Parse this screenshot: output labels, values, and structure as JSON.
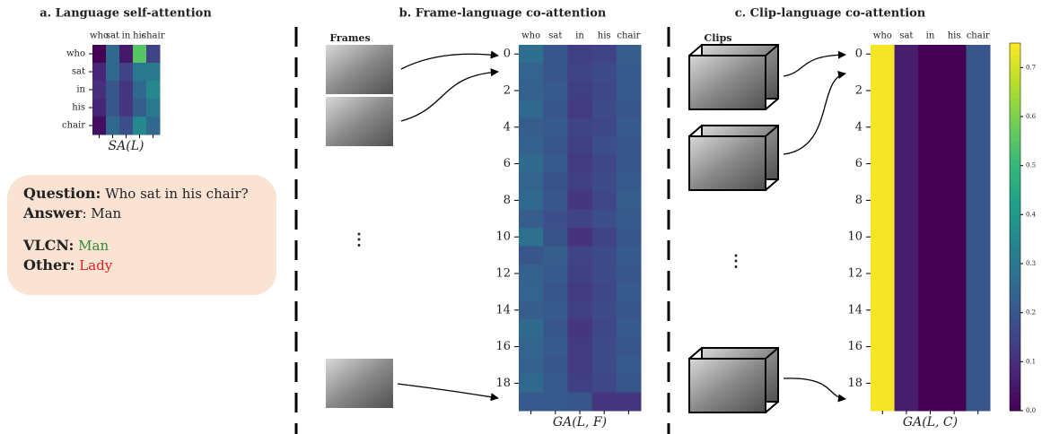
{
  "chart_data": [
    {
      "type": "heatmap",
      "title": "a. Language self-attention",
      "x_label": "SA(L)",
      "categories": [
        "who",
        "sat",
        "in",
        "his",
        "chair"
      ],
      "rows": [
        "who",
        "sat",
        "in",
        "his",
        "chair"
      ],
      "z": [
        [
          0.0,
          0.25,
          0.05,
          0.55,
          0.15
        ],
        [
          0.08,
          0.25,
          0.15,
          0.3,
          0.3
        ],
        [
          0.1,
          0.2,
          0.12,
          0.25,
          0.35
        ],
        [
          0.08,
          0.2,
          0.12,
          0.22,
          0.3
        ],
        [
          0.03,
          0.25,
          0.18,
          0.35,
          0.25
        ]
      ]
    },
    {
      "type": "heatmap",
      "title": "b. Frame-language co-attention",
      "x_label": "GA(L, F)",
      "categories": [
        "who",
        "sat",
        "in",
        "his",
        "chair"
      ],
      "yticks": [
        0,
        2,
        4,
        6,
        8,
        10,
        12,
        14,
        16,
        18
      ],
      "z": [
        [
          0.27,
          0.2,
          0.14,
          0.15,
          0.22
        ],
        [
          0.24,
          0.2,
          0.15,
          0.17,
          0.21
        ],
        [
          0.23,
          0.21,
          0.14,
          0.16,
          0.21
        ],
        [
          0.25,
          0.2,
          0.13,
          0.17,
          0.2
        ],
        [
          0.22,
          0.21,
          0.15,
          0.16,
          0.21
        ],
        [
          0.23,
          0.2,
          0.14,
          0.18,
          0.2
        ],
        [
          0.26,
          0.21,
          0.13,
          0.16,
          0.2
        ],
        [
          0.24,
          0.19,
          0.14,
          0.17,
          0.21
        ],
        [
          0.25,
          0.2,
          0.12,
          0.16,
          0.22
        ],
        [
          0.22,
          0.18,
          0.15,
          0.18,
          0.21
        ],
        [
          0.28,
          0.19,
          0.11,
          0.15,
          0.2
        ],
        [
          0.2,
          0.22,
          0.15,
          0.17,
          0.21
        ],
        [
          0.23,
          0.21,
          0.14,
          0.17,
          0.2
        ],
        [
          0.24,
          0.2,
          0.13,
          0.16,
          0.21
        ],
        [
          0.22,
          0.21,
          0.14,
          0.17,
          0.2
        ],
        [
          0.26,
          0.2,
          0.12,
          0.16,
          0.21
        ],
        [
          0.24,
          0.21,
          0.13,
          0.17,
          0.2
        ],
        [
          0.23,
          0.2,
          0.13,
          0.17,
          0.21
        ],
        [
          0.25,
          0.21,
          0.14,
          0.16,
          0.2
        ],
        [
          0.21,
          0.21,
          0.2,
          0.12,
          0.12
        ]
      ]
    },
    {
      "type": "heatmap",
      "title": "c. Clip-language co-attention",
      "x_label": "GA(L, C)",
      "categories": [
        "who",
        "sat",
        "in",
        "his",
        "chair"
      ],
      "yticks": [
        0,
        2,
        4,
        6,
        8,
        10,
        12,
        14,
        16,
        18
      ],
      "z": [
        [
          0.74,
          0.06,
          0.0,
          0.0,
          0.2
        ],
        [
          0.74,
          0.06,
          0.0,
          0.0,
          0.2
        ],
        [
          0.74,
          0.06,
          0.0,
          0.0,
          0.2
        ],
        [
          0.74,
          0.06,
          0.0,
          0.0,
          0.2
        ],
        [
          0.74,
          0.06,
          0.0,
          0.0,
          0.2
        ],
        [
          0.74,
          0.06,
          0.0,
          0.0,
          0.2
        ],
        [
          0.74,
          0.06,
          0.0,
          0.0,
          0.2
        ],
        [
          0.74,
          0.06,
          0.0,
          0.0,
          0.2
        ],
        [
          0.74,
          0.06,
          0.0,
          0.0,
          0.2
        ],
        [
          0.74,
          0.06,
          0.0,
          0.0,
          0.2
        ],
        [
          0.74,
          0.06,
          0.0,
          0.0,
          0.2
        ],
        [
          0.74,
          0.06,
          0.0,
          0.0,
          0.2
        ],
        [
          0.74,
          0.06,
          0.0,
          0.0,
          0.2
        ],
        [
          0.74,
          0.06,
          0.0,
          0.0,
          0.2
        ],
        [
          0.74,
          0.06,
          0.0,
          0.0,
          0.2
        ],
        [
          0.74,
          0.06,
          0.0,
          0.0,
          0.2
        ],
        [
          0.74,
          0.06,
          0.0,
          0.0,
          0.2
        ],
        [
          0.74,
          0.06,
          0.0,
          0.0,
          0.2
        ],
        [
          0.74,
          0.06,
          0.0,
          0.0,
          0.2
        ],
        [
          0.74,
          0.06,
          0.0,
          0.0,
          0.2
        ]
      ],
      "zlim": [
        0,
        0.75
      ],
      "zticks": [
        {
          "value": 0,
          "label": "0.0"
        },
        0.1,
        0.2,
        0.3,
        0.4,
        0.5,
        0.6,
        0.7
      ]
    }
  ],
  "qa": {
    "question_label": "Question:",
    "question": "Who sat in his chair?",
    "answer_label": "Answer",
    "answer": ": Man",
    "vlcn_label": "VLCN:",
    "vlcn": "Man",
    "other_label": "Other:",
    "other": "Lady"
  },
  "frames_label": "Frames",
  "clips_label": "Clips"
}
